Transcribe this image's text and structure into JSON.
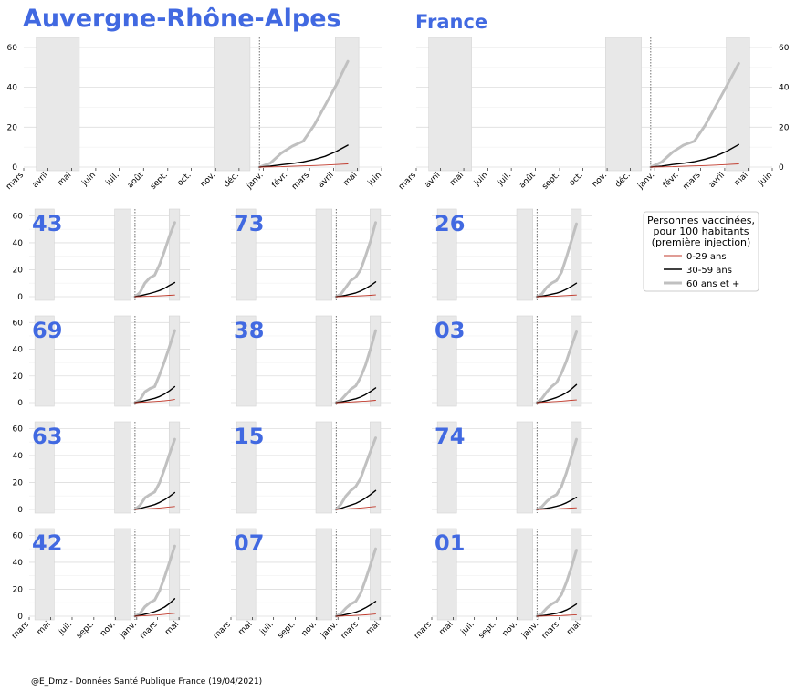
{
  "region": {
    "title": "Auvergne-Rhône-Alpes"
  },
  "national": {
    "title": "France"
  },
  "legend": {
    "title_lines": [
      "Personnes vaccinées,",
      "pour 100 habitants",
      "(première injection)"
    ],
    "items": [
      {
        "label": "0-29 ans",
        "color": "#c0392b"
      },
      {
        "label": "30-59 ans",
        "color": "#000000"
      },
      {
        "label": "60 ans et +",
        "color": "#c0c0c0"
      }
    ]
  },
  "source": "@E_Dmz - Données Santé Publique France (19/04/2021)",
  "chart_data": {
    "type": "line",
    "x_unit": "date",
    "xlim": [
      "2020-03-01",
      "2021-06-01"
    ],
    "ylim": [
      0,
      65
    ],
    "y_ticks": [
      0,
      20,
      40,
      60
    ],
    "top_x_ticks": [
      {
        "label": "mars",
        "date": "2020-03-01"
      },
      {
        "label": "avril",
        "date": "2020-04-01"
      },
      {
        "label": "mai",
        "date": "2020-05-01"
      },
      {
        "label": "juin",
        "date": "2020-06-01"
      },
      {
        "label": "juil.",
        "date": "2020-07-01"
      },
      {
        "label": "août",
        "date": "2020-08-01"
      },
      {
        "label": "sept.",
        "date": "2020-09-01"
      },
      {
        "label": "oct.",
        "date": "2020-10-01"
      },
      {
        "label": "nov.",
        "date": "2020-11-01"
      },
      {
        "label": "déc.",
        "date": "2020-12-01"
      },
      {
        "label": "janv.",
        "date": "2021-01-01"
      },
      {
        "label": "févr.",
        "date": "2021-02-01"
      },
      {
        "label": "mars",
        "date": "2021-03-01"
      },
      {
        "label": "avril",
        "date": "2021-04-01"
      },
      {
        "label": "mai",
        "date": "2021-05-01"
      },
      {
        "label": "juin",
        "date": "2021-06-01"
      }
    ],
    "small_x_ticks": [
      {
        "label": "mars",
        "date": "2020-03-01"
      },
      {
        "label": "mai",
        "date": "2020-05-01"
      },
      {
        "label": "juil.",
        "date": "2020-07-01"
      },
      {
        "label": "sept.",
        "date": "2020-09-01"
      },
      {
        "label": "nov.",
        "date": "2020-11-01"
      },
      {
        "label": "janv.",
        "date": "2021-01-01"
      },
      {
        "label": "mars",
        "date": "2021-03-01"
      },
      {
        "label": "mai",
        "date": "2021-05-01"
      }
    ],
    "lockdowns": [
      {
        "start": "2020-03-17",
        "end": "2020-05-11"
      },
      {
        "start": "2020-10-30",
        "end": "2020-12-15"
      },
      {
        "start": "2021-04-03",
        "end": "2021-05-03"
      }
    ],
    "vaccination_start": "2020-12-27",
    "dates": [
      "2020-12-27",
      "2021-01-10",
      "2021-01-24",
      "2021-02-07",
      "2021-02-21",
      "2021-03-07",
      "2021-03-21",
      "2021-04-04",
      "2021-04-19"
    ],
    "panels": [
      {
        "id": "Auvergne-Rhône-Alpes",
        "series": [
          {
            "name": "0-29 ans",
            "values": [
              0,
              0.1,
              0.2,
              0.4,
              0.6,
              0.8,
              1.0,
              1.3,
              1.6
            ]
          },
          {
            "name": "30-59 ans",
            "values": [
              0,
              0.5,
              1.2,
              1.8,
              2.6,
              3.8,
              5.4,
              7.8,
              11
            ]
          },
          {
            "name": "60 ans et +",
            "values": [
              0,
              2,
              7,
              10.5,
              13,
              21,
              31,
              41,
              53
            ]
          }
        ]
      },
      {
        "id": "France",
        "series": [
          {
            "name": "0-29 ans",
            "values": [
              0,
              0.1,
              0.2,
              0.4,
              0.6,
              0.8,
              1.0,
              1.3,
              1.6
            ]
          },
          {
            "name": "30-59 ans",
            "values": [
              0,
              0.5,
              1.3,
              1.9,
              2.7,
              4.0,
              5.6,
              8.0,
              11.3
            ]
          },
          {
            "name": "60 ans et +",
            "values": [
              0,
              2.5,
              7.5,
              11,
              13,
              21,
              31,
              41,
              52
            ]
          }
        ]
      },
      {
        "id": "43",
        "series": [
          {
            "name": "0-29 ans",
            "values": [
              0,
              0.1,
              0.2,
              0.3,
              0.5,
              0.6,
              0.8,
              1.0,
              1.2
            ]
          },
          {
            "name": "30-59 ans",
            "values": [
              0,
              0.6,
              1.5,
              2.4,
              3.4,
              4.6,
              6.2,
              8.4,
              10.5
            ]
          },
          {
            "name": "60 ans et +",
            "values": [
              0,
              3,
              10,
              14,
              16,
              24,
              34,
              45,
              55
            ]
          }
        ]
      },
      {
        "id": "73",
        "series": [
          {
            "name": "0-29 ans",
            "values": [
              0,
              0.1,
              0.2,
              0.3,
              0.5,
              0.6,
              0.8,
              1.0,
              1.3
            ]
          },
          {
            "name": "30-59 ans",
            "values": [
              0,
              0.4,
              1.1,
              1.9,
              2.8,
              4.2,
              6.0,
              8.2,
              11
            ]
          },
          {
            "name": "60 ans et +",
            "values": [
              0,
              2,
              7,
              12,
              14.5,
              20,
              30,
              41,
              55
            ]
          }
        ]
      },
      {
        "id": "26",
        "series": [
          {
            "name": "0-29 ans",
            "values": [
              0,
              0.1,
              0.2,
              0.3,
              0.4,
              0.6,
              0.8,
              1.0,
              1.2
            ]
          },
          {
            "name": "30-59 ans",
            "values": [
              0,
              0.4,
              1.0,
              1.8,
              2.6,
              3.8,
              5.5,
              7.6,
              10
            ]
          },
          {
            "name": "60 ans et +",
            "values": [
              0,
              2,
              7,
              10,
              12,
              18,
              29,
              41,
              54
            ]
          }
        ]
      },
      {
        "id": "69",
        "series": [
          {
            "name": "0-29 ans",
            "values": [
              0,
              0.2,
              0.4,
              0.6,
              0.8,
              1.1,
              1.4,
              1.8,
              2.3
            ]
          },
          {
            "name": "30-59 ans",
            "values": [
              0,
              0.6,
              1.5,
              2.3,
              3.2,
              4.6,
              6.4,
              8.8,
              12
            ]
          },
          {
            "name": "60 ans et +",
            "values": [
              0,
              2,
              8,
              10.5,
              12,
              21,
              31,
              42,
              54
            ]
          }
        ]
      },
      {
        "id": "38",
        "series": [
          {
            "name": "0-29 ans",
            "values": [
              0,
              0.1,
              0.3,
              0.5,
              0.7,
              0.9,
              1.1,
              1.4,
              1.7
            ]
          },
          {
            "name": "30-59 ans",
            "values": [
              0,
              0.5,
              1.2,
              2.0,
              2.9,
              4.2,
              6.0,
              8.3,
              11
            ]
          },
          {
            "name": "60 ans et +",
            "values": [
              0,
              2,
              6,
              10,
              12.5,
              19,
              28,
              40,
              54
            ]
          }
        ]
      },
      {
        "id": "03",
        "series": [
          {
            "name": "0-29 ans",
            "values": [
              0,
              0.2,
              0.4,
              0.6,
              0.8,
              1.1,
              1.4,
              1.7,
              2.0
            ]
          },
          {
            "name": "30-59 ans",
            "values": [
              0,
              0.6,
              1.6,
              2.6,
              3.8,
              5.4,
              7.4,
              10,
              13.5
            ]
          },
          {
            "name": "60 ans et +",
            "values": [
              0,
              3,
              8,
              12,
              15,
              22,
              31,
              42,
              53
            ]
          }
        ]
      },
      {
        "id": "63",
        "series": [
          {
            "name": "0-29 ans",
            "values": [
              0,
              0.2,
              0.4,
              0.6,
              0.8,
              1.1,
              1.4,
              1.8,
              2.2
            ]
          },
          {
            "name": "30-59 ans",
            "values": [
              0,
              0.7,
              1.6,
              2.6,
              3.6,
              5.2,
              7.2,
              9.6,
              12.5
            ]
          },
          {
            "name": "60 ans et +",
            "values": [
              0,
              3,
              8.5,
              11,
              13,
              20,
              30,
              41,
              52
            ]
          }
        ]
      },
      {
        "id": "15",
        "series": [
          {
            "name": "0-29 ans",
            "values": [
              0,
              0.2,
              0.4,
              0.6,
              0.8,
              1.1,
              1.4,
              1.8,
              2.2
            ]
          },
          {
            "name": "30-59 ans",
            "values": [
              0,
              0.8,
              2.0,
              3.2,
              4.4,
              6.2,
              8.4,
              11,
              14
            ]
          },
          {
            "name": "60 ans et +",
            "values": [
              0,
              4,
              10,
              14,
              17,
              23,
              33,
              43,
              53
            ]
          }
        ]
      },
      {
        "id": "74",
        "series": [
          {
            "name": "0-29 ans",
            "values": [
              0,
              0.1,
              0.2,
              0.3,
              0.4,
              0.6,
              0.8,
              1.0,
              1.2
            ]
          },
          {
            "name": "30-59 ans",
            "values": [
              0,
              0.4,
              0.9,
              1.5,
              2.3,
              3.4,
              4.9,
              6.8,
              9
            ]
          },
          {
            "name": "60 ans et +",
            "values": [
              0,
              2,
              6,
              9,
              11,
              17,
              27,
              39,
              52
            ]
          }
        ]
      },
      {
        "id": "42",
        "series": [
          {
            "name": "0-29 ans",
            "values": [
              0,
              0.2,
              0.4,
              0.6,
              0.8,
              1.1,
              1.4,
              1.8,
              2.2
            ]
          },
          {
            "name": "30-59 ans",
            "values": [
              0,
              0.6,
              1.5,
              2.4,
              3.4,
              4.9,
              6.8,
              9.4,
              13
            ]
          },
          {
            "name": "60 ans et +",
            "values": [
              0,
              2,
              7,
              10,
              12,
              19,
              29,
              40,
              52
            ]
          }
        ]
      },
      {
        "id": "07",
        "series": [
          {
            "name": "0-29 ans",
            "values": [
              0,
              0.1,
              0.3,
              0.4,
              0.6,
              0.8,
              1.0,
              1.3,
              1.6
            ]
          },
          {
            "name": "30-59 ans",
            "values": [
              0,
              0.5,
              1.3,
              2.1,
              3.0,
              4.4,
              6.2,
              8.4,
              11
            ]
          },
          {
            "name": "60 ans et +",
            "values": [
              0,
              2,
              6,
              9,
              11,
              17,
              27,
              38,
              50
            ]
          }
        ]
      },
      {
        "id": "01",
        "series": [
          {
            "name": "0-29 ans",
            "values": [
              0,
              0.1,
              0.2,
              0.3,
              0.4,
              0.5,
              0.7,
              0.9,
              1.1
            ]
          },
          {
            "name": "30-59 ans",
            "values": [
              0,
              0.4,
              0.9,
              1.5,
              2.2,
              3.2,
              4.6,
              6.5,
              9
            ]
          },
          {
            "name": "60 ans et +",
            "values": [
              0,
              2,
              6,
              9,
              11,
              16,
              25,
              36,
              49
            ]
          }
        ]
      }
    ]
  }
}
